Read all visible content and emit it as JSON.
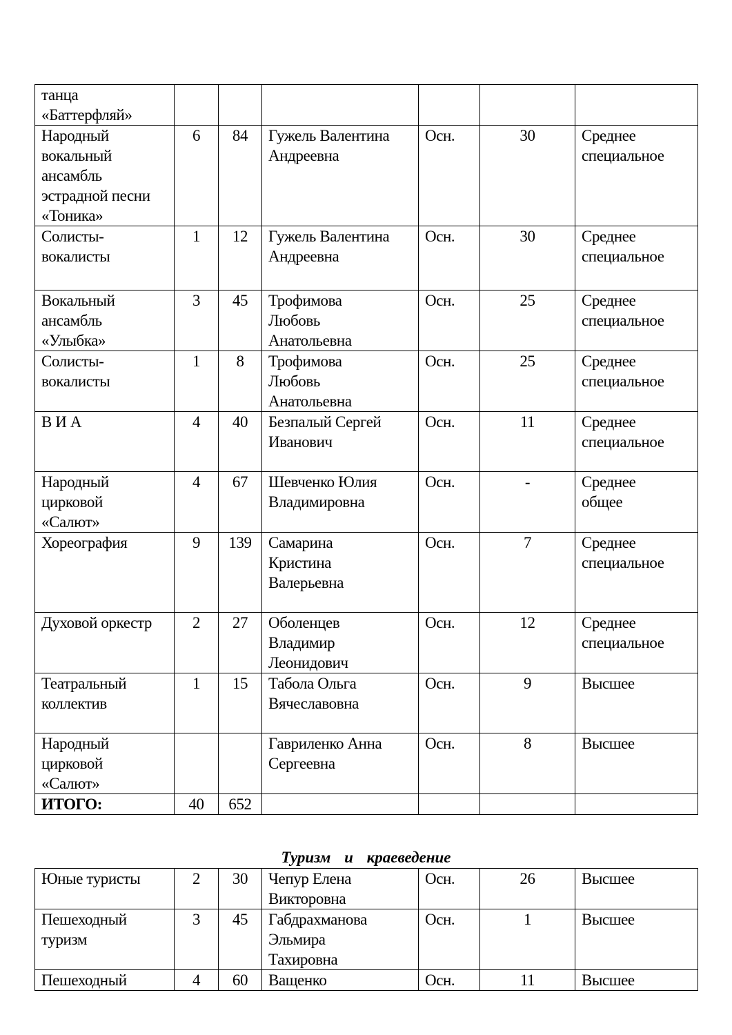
{
  "table1": {
    "rows": [
      {
        "name": "танца\n«Баттерфляй»",
        "groups": "",
        "students": "",
        "teacher": "",
        "type": "",
        "experience": "",
        "education": ""
      },
      {
        "name": "Народный\nвокальный\nансамбль\nэстрадной песни\n«Тоника»",
        "groups": "6",
        "students": "84",
        "teacher": "Гужель Валентина\nАндреевна",
        "type": "Осн.",
        "experience": "30",
        "education": "Среднее\nспециальное"
      },
      {
        "name": "Солисты-\nвокалисты",
        "groups": "1",
        "students": "12",
        "teacher": "Гужель Валентина\nАндреевна",
        "type": "Осн.",
        "experience": "30",
        "education": "Среднее\nспециальное"
      },
      {
        "name": "Вокальный\nансамбль\n«Улыбка»",
        "groups": "3",
        "students": "45",
        "teacher": "Трофимова\nЛюбовь\nАнатольевна",
        "type": "Осн.",
        "experience": "25",
        "education": "Среднее\nспециальное"
      },
      {
        "name": "Солисты-\nвокалисты",
        "groups": "1",
        "students": "8",
        "teacher": "Трофимова\nЛюбовь\nАнатольевна",
        "type": "Осн.",
        "experience": "25",
        "education": "Среднее\nспециальное"
      },
      {
        "name": "  В И А",
        "groups": "4",
        "students": "40",
        "teacher": "Безпалый Сергей\nИванович",
        "type": "Осн.",
        "experience": "11",
        "education": "Среднее\nспециальное"
      },
      {
        "name": "Народный\nцирковой\n«Салют»",
        "groups": "4",
        "students": "67",
        "teacher": "Шевченко Юлия\nВладимировна",
        "type": "Осн.",
        "experience": "-",
        "education": "Среднее\nобщее"
      },
      {
        "name": "Хореография",
        "groups": "9",
        "students": "139",
        "teacher": "Самарина\nКристина\nВалерьевна",
        "type": "Осн.",
        "experience": "7",
        "education": "Среднее\nспециальное"
      },
      {
        "name": "Духовой оркестр",
        "groups": "2",
        "students": "27",
        "teacher": "Оболенцев\nВладимир\nЛеонидович",
        "type": "Осн.",
        "experience": "12",
        "education": "Среднее\nспециальное"
      },
      {
        "name": "Театральный\nколлектив",
        "groups": "1",
        "students": "15",
        "teacher": "Табола Ольга\nВячеславовна",
        "type": "Осн.",
        "experience": "9",
        "education": "Высшее"
      },
      {
        "name": "Народный\nцирковой\n«Салют»",
        "groups": "",
        "students": "",
        "teacher": "Гавриленко Анна\nСергеевна",
        "type": "Осн.",
        "experience": "8",
        "education": "Высшее"
      }
    ],
    "total": {
      "label": "ИТОГО:",
      "groups": "40",
      "students": "652"
    }
  },
  "section2": {
    "title": "Туризм и краеведение",
    "rows": [
      {
        "name": "Юные туристы",
        "groups": "2",
        "students": "30",
        "teacher": "Чепур Елена\nВикторовна",
        "type": "Осн.",
        "experience": "26",
        "education": "Высшее"
      },
      {
        "name": "Пешеходный\nтуризм",
        "groups": "3",
        "students": "45",
        "teacher": "Габдрахманова\nЭльмира\nТахировна",
        "type": "Осн.",
        "experience": "1",
        "education": "Высшее"
      },
      {
        "name": "Пешеходный",
        "groups": "4",
        "students": "60",
        "teacher": "Ващенко",
        "type": "Осн.",
        "experience": "11",
        "education": "Высшее"
      }
    ]
  }
}
